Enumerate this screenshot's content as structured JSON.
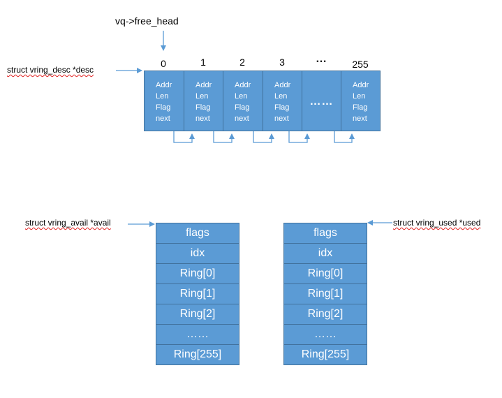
{
  "free_head_label": "vq->free_head",
  "desc_label": "struct vring_desc *desc",
  "avail_label": "struct vring_avail *avail",
  "used_label": "struct vring_used *used",
  "desc_table": {
    "indices": [
      "0",
      "1",
      "2",
      "3",
      "…",
      "255"
    ],
    "fields": [
      "Addr",
      "Len",
      "Flag",
      "next"
    ],
    "ellipsis": "……"
  },
  "avail_ring": {
    "rows": [
      "flags",
      "idx",
      "Ring[0]",
      "Ring[1]",
      "Ring[2]",
      "……",
      "Ring[255]"
    ]
  },
  "used_ring": {
    "rows": [
      "flags",
      "idx",
      "Ring[0]",
      "Ring[1]",
      "Ring[2]",
      "……",
      "Ring[255]"
    ]
  },
  "colors": {
    "box_fill": "#5b9bd5",
    "box_border": "#41719c",
    "arrow": "#5b9bd5"
  }
}
